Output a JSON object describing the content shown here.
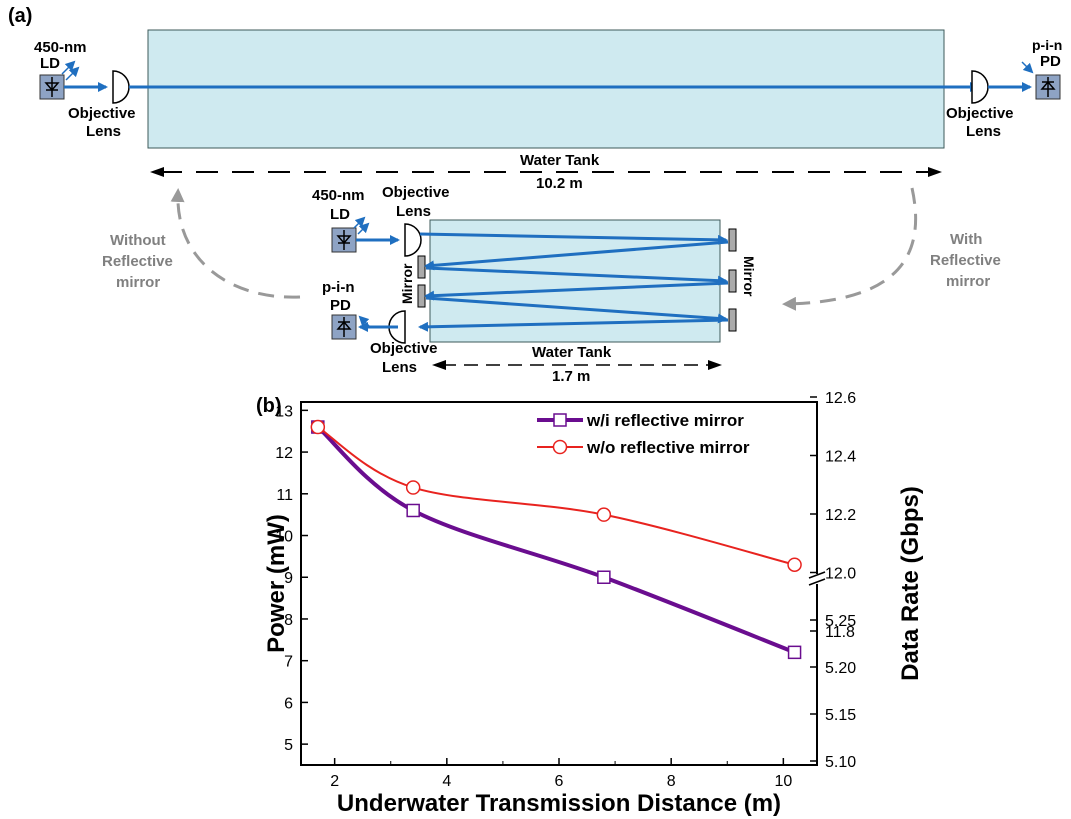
{
  "panel_a": {
    "label": "(a)",
    "top_setup": {
      "ld_label_1": "450-nm",
      "ld_label_2": "LD",
      "lens_left_1": "Objective",
      "lens_left_2": "Lens",
      "lens_right_1": "Objective",
      "lens_right_2": "Lens",
      "pd_label_1": "p-i-n",
      "pd_label_2": "PD",
      "tank_label": "Water Tank",
      "tank_length": "10.2 m"
    },
    "without_label": [
      "Without",
      "Reflective",
      "mirror"
    ],
    "with_label": [
      "With",
      "Reflective",
      "mirror"
    ],
    "bottom_setup": {
      "ld_label_1": "450-nm",
      "ld_label_2": "LD",
      "lens_top_1": "Objective",
      "lens_top_2": "Lens",
      "pd_label_1": "p-i-n",
      "pd_label_2": "PD",
      "lens_bottom_1": "Objective",
      "lens_bottom_2": "Lens",
      "mirror_left": "Mirror",
      "mirror_right": "Mirror",
      "tank_label": "Water Tank",
      "tank_length": "1.7 m"
    },
    "colors": {
      "tank_fill": "#cfeaf0",
      "beam": "#1f6fc0",
      "device": "#8ea3c4",
      "arrow_grey": "#999999"
    }
  },
  "panel_b": {
    "label": "(b)"
  },
  "chart_data": {
    "type": "line",
    "xlabel": "Underwater Transmission Distance (m)",
    "ylabel_left": "Power (mW)",
    "ylabel_right": "Data Rate (Gbps)",
    "xlim": [
      1.4,
      10.6
    ],
    "ylim_left": [
      4.5,
      13.2
    ],
    "x_ticks": [
      "2",
      "4",
      "6",
      "8",
      "10"
    ],
    "y_left_ticks": [
      "5",
      "6",
      "7",
      "8",
      "9",
      "10",
      "11",
      "12",
      "13"
    ],
    "y_right_ticks_upper": [
      "11.8",
      "12.0",
      "12.2",
      "12.4",
      "12.6"
    ],
    "y_right_ticks_lower": [
      "5.10",
      "5.15",
      "5.20",
      "5.25"
    ],
    "legend_position": "top-right",
    "series": [
      {
        "name": "w/i reflective mirror",
        "color": "#6a0d8f",
        "marker": "square",
        "x": [
          1.7,
          3.4,
          6.8,
          10.2
        ],
        "y": [
          12.6,
          10.6,
          9.0,
          7.2
        ]
      },
      {
        "name": "w/o reflective mirror",
        "color": "#e8231f",
        "marker": "circle",
        "x": [
          1.7,
          3.4,
          6.8,
          10.2
        ],
        "y": [
          12.6,
          11.15,
          10.5,
          9.3
        ]
      }
    ]
  }
}
